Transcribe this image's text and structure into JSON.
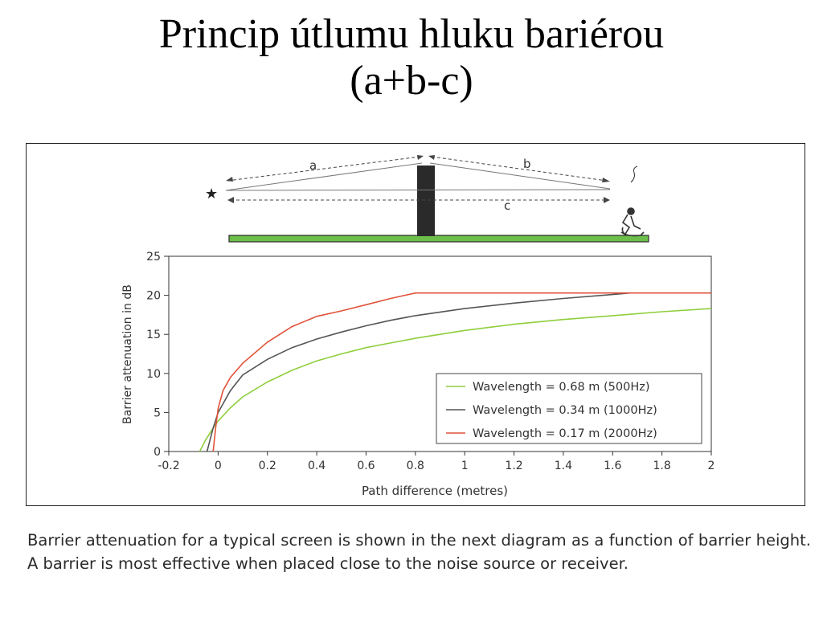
{
  "slide": {
    "title_line1": "Princip útlumu hluku bariérou",
    "title_line2": "(a+b-c)",
    "caption": "Barrier attenuation for a typical screen is shown in the next diagram as a function of barrier height. A barrier is most effective when placed close to the noise source or receiver."
  },
  "diagram": {
    "label_a": "a",
    "label_b": "b",
    "label_c": "c",
    "source_glyph": "★",
    "source_icon": "star-icon",
    "receiver_icon": "person-icon",
    "ground_color": "#6cc04a",
    "barrier_color": "#2a2a2a"
  },
  "chart_data": {
    "type": "line",
    "title": "",
    "xlabel": "Path difference (metres)",
    "ylabel": "Barrier attenuation in dB",
    "xlim": [
      -0.2,
      2
    ],
    "ylim": [
      0,
      25
    ],
    "xticks": [
      -0.2,
      0,
      0.2,
      0.4,
      0.6,
      0.8,
      1,
      1.2,
      1.4,
      1.6,
      1.8,
      2
    ],
    "xtick_labels": [
      "-0.2",
      "0",
      "0.2",
      "0.4",
      "0.6",
      "0.8",
      "1",
      "1.2",
      "1.4",
      "1.6",
      "1.8",
      "2"
    ],
    "yticks": [
      0,
      5,
      10,
      15,
      20,
      25
    ],
    "ytick_labels": [
      "0",
      "5",
      "10",
      "15",
      "20",
      "25"
    ],
    "legend_position": "lower-right",
    "grid": false,
    "series": [
      {
        "name": "Wavelength = 0.68 m (500Hz)",
        "color": "#8fce3c",
        "x": [
          -0.075,
          -0.05,
          -0.02,
          0.0,
          0.05,
          0.1,
          0.2,
          0.3,
          0.4,
          0.5,
          0.6,
          0.7,
          0.8,
          1.0,
          1.2,
          1.4,
          1.6,
          1.8,
          2.0
        ],
        "y": [
          0.0,
          1.5,
          3.0,
          3.9,
          5.6,
          7.0,
          8.9,
          10.4,
          11.6,
          12.5,
          13.3,
          13.9,
          14.5,
          15.5,
          16.3,
          16.9,
          17.4,
          17.9,
          18.3
        ]
      },
      {
        "name": "Wavelength = 0.34 m (1000Hz)",
        "color": "#555555",
        "x": [
          -0.045,
          -0.02,
          0.0,
          0.05,
          0.1,
          0.2,
          0.3,
          0.4,
          0.5,
          0.6,
          0.7,
          0.8,
          1.0,
          1.2,
          1.4,
          1.6,
          1.67
        ],
        "y": [
          0.0,
          3.0,
          5.0,
          7.8,
          9.8,
          11.8,
          13.3,
          14.4,
          15.3,
          16.1,
          16.8,
          17.4,
          18.3,
          19.0,
          19.6,
          20.1,
          20.3
        ]
      },
      {
        "name": "Wavelength = 0.17 m (2000Hz)",
        "color": "#e0533a",
        "x": [
          -0.02,
          -0.01,
          0.0,
          0.02,
          0.05,
          0.1,
          0.2,
          0.3,
          0.4,
          0.5,
          0.6,
          0.7,
          0.8,
          1.0,
          1.2,
          1.4,
          1.6,
          1.8,
          2.0
        ],
        "y": [
          0.0,
          3.0,
          5.5,
          7.8,
          9.5,
          11.3,
          14.0,
          16.0,
          17.3,
          18.0,
          18.8,
          19.6,
          20.3,
          20.3,
          20.3,
          20.3,
          20.3,
          20.3,
          20.3
        ]
      }
    ]
  }
}
